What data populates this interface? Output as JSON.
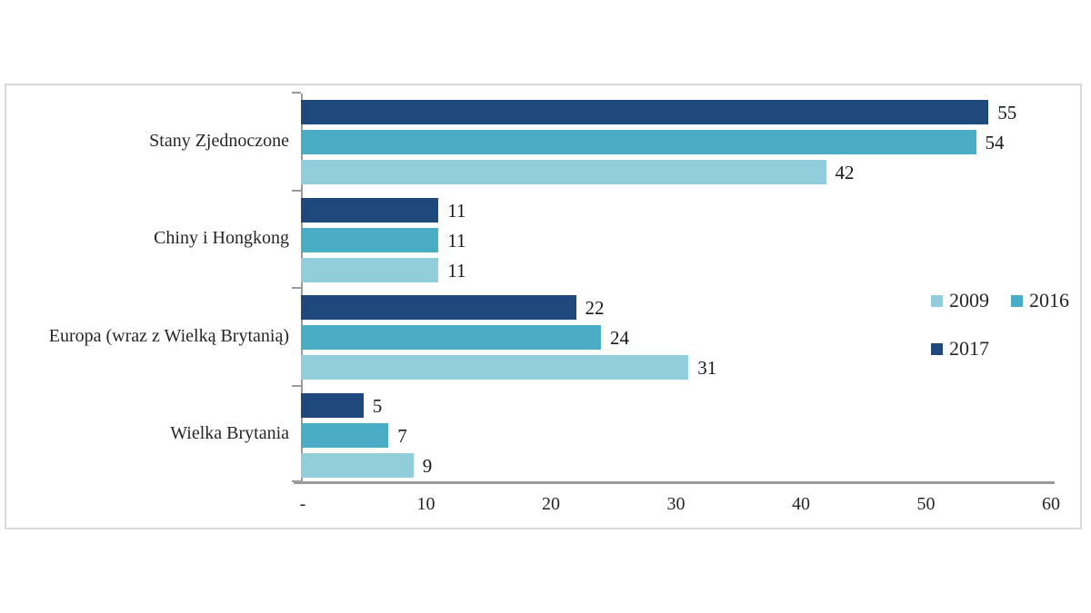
{
  "chart_data": {
    "type": "bar",
    "orientation": "horizontal",
    "title": "",
    "xlabel": "",
    "ylabel": "",
    "categories": [
      "Stany Zjednoczone",
      "Chiny i Hongkong",
      "Europa (wraz z Wielką Brytanią)",
      "Wielka Brytania"
    ],
    "series": [
      {
        "name": "2009",
        "color": "#92CDDC",
        "values": [
          42,
          11,
          31,
          9
        ]
      },
      {
        "name": "2016",
        "color": "#4BACC6",
        "values": [
          54,
          11,
          24,
          7
        ]
      },
      {
        "name": "2017",
        "color": "#1F497D",
        "values": [
          55,
          11,
          22,
          5
        ]
      }
    ],
    "series_display_order_top_to_bottom": [
      "2017",
      "2016",
      "2009"
    ],
    "xlim": [
      0,
      60
    ],
    "x_ticks": [
      {
        "value": 0,
        "label": "-"
      },
      {
        "value": 10,
        "label": "10"
      },
      {
        "value": 20,
        "label": "20"
      },
      {
        "value": 30,
        "label": "30"
      },
      {
        "value": 40,
        "label": "40"
      },
      {
        "value": 50,
        "label": "50"
      },
      {
        "value": 60,
        "label": "60"
      }
    ],
    "grid": false,
    "data_labels": true,
    "legend_position": "right",
    "legend_rows": [
      [
        "2009",
        "2016"
      ],
      [
        "2017"
      ]
    ]
  },
  "style": {
    "frame_border_color": "#D9D9D9",
    "axis_color": "#9A9A9A",
    "text_color": "#262626",
    "background": "#FFFFFF"
  }
}
